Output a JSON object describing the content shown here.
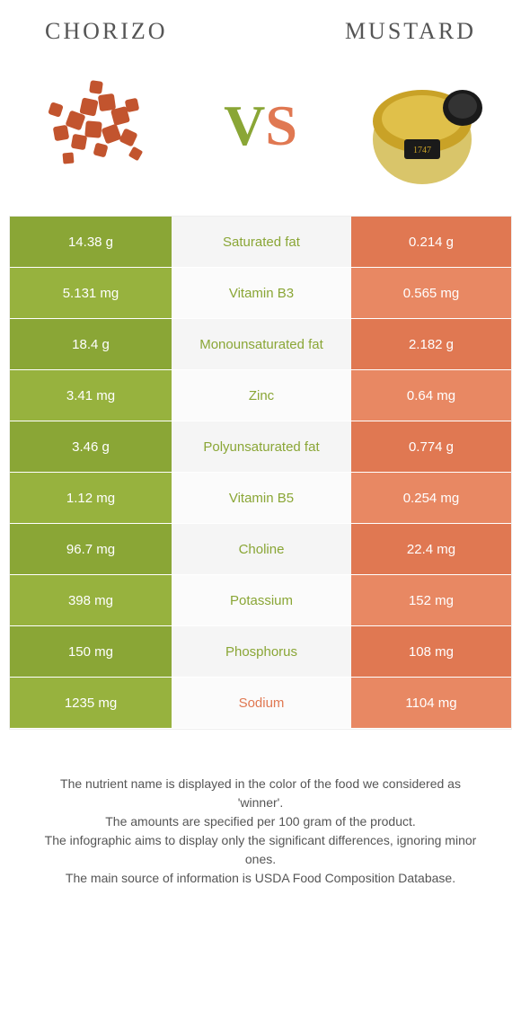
{
  "header": {
    "left_title": "Chorizo",
    "right_title": "Mustard",
    "vs_v": "V",
    "vs_s": "S"
  },
  "colors": {
    "left": "#8aa636",
    "right": "#e07852",
    "mid_bg": "#f5f5f5"
  },
  "rows": [
    {
      "left": "14.38 g",
      "label": "Saturated fat",
      "right": "0.214 g",
      "winner": "left"
    },
    {
      "left": "5.131 mg",
      "label": "Vitamin B3",
      "right": "0.565 mg",
      "winner": "left"
    },
    {
      "left": "18.4 g",
      "label": "Monounsaturated fat",
      "right": "2.182 g",
      "winner": "left"
    },
    {
      "left": "3.41 mg",
      "label": "Zinc",
      "right": "0.64 mg",
      "winner": "left"
    },
    {
      "left": "3.46 g",
      "label": "Polyunsaturated fat",
      "right": "0.774 g",
      "winner": "left"
    },
    {
      "left": "1.12 mg",
      "label": "Vitamin B5",
      "right": "0.254 mg",
      "winner": "left"
    },
    {
      "left": "96.7 mg",
      "label": "Choline",
      "right": "22.4 mg",
      "winner": "left"
    },
    {
      "left": "398 mg",
      "label": "Potassium",
      "right": "152 mg",
      "winner": "left"
    },
    {
      "left": "150 mg",
      "label": "Phosphorus",
      "right": "108 mg",
      "winner": "left"
    },
    {
      "left": "1235 mg",
      "label": "Sodium",
      "right": "1104 mg",
      "winner": "right"
    }
  ],
  "footer": {
    "l1": "The nutrient name is displayed in the color of the food we considered as 'winner'.",
    "l2": "The amounts are specified per 100 gram of the product.",
    "l3": "The infographic aims to display only the significant differences, ignoring minor ones.",
    "l4": "The main source of information is USDA Food Composition Database."
  }
}
